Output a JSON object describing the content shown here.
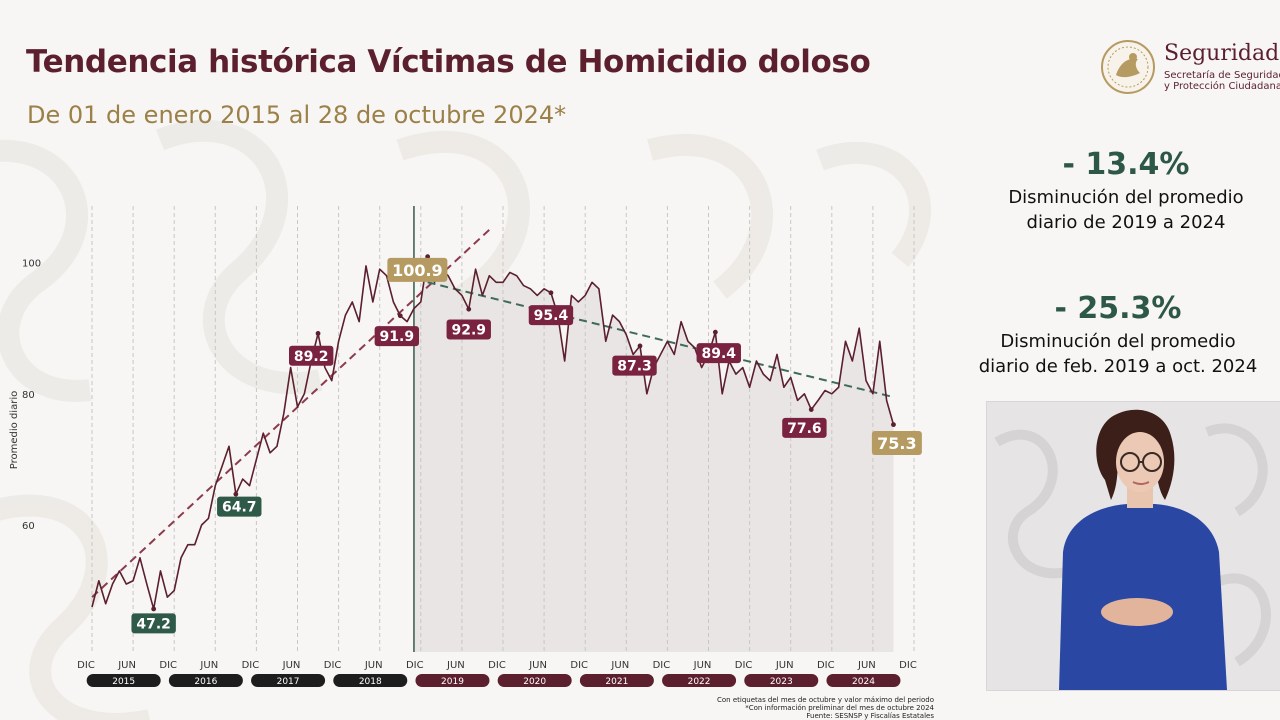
{
  "header": {
    "title": "Tendencia histórica Víctimas de Homicidio doloso",
    "subtitle": "De 01 de enero 2015 al 28 de octubre 2024*"
  },
  "logo": {
    "name": "Seguridad",
    "subtitle_line1": "Secretaría de Seguridad",
    "subtitle_line2": "y Protección Ciudadana"
  },
  "stats": [
    {
      "value": "- 13.4%",
      "description_line1": "Disminución del promedio",
      "description_line2": "diario de 2019 a 2024"
    },
    {
      "value": "- 25.3%",
      "description_line1": "Disminución del promedio",
      "description_line2": "diario de feb. 2019 a oct. 2024"
    }
  ],
  "footnote": {
    "line1": "Con etiquetas del mes de octubre y valor máximo del periodo",
    "line2": "*Con información preliminar del mes de octubre 2024",
    "line3": "Fuente: SESNSP y Fiscalías Estatales"
  },
  "colors": {
    "title": "#5b1f2e",
    "subtitle": "#9b8048",
    "stat_value": "#2d5746",
    "line": "#5b1f2e",
    "trend_up": "#8c3a4c",
    "trend_down": "#3f6b58",
    "label_maroon": "#7a2340",
    "label_green": "#2f5a48",
    "label_gold": "#b59a62",
    "shade": "#e9e5e5"
  },
  "chart_data": {
    "type": "line",
    "ylabel": "Promedio diario",
    "ylim": [
      42,
      112
    ],
    "y_ticks": [
      60,
      80,
      100
    ],
    "x_range": [
      0,
      118
    ],
    "x_ticks": [
      {
        "x": 0,
        "label": "DIC"
      },
      {
        "x": 6,
        "label": "JUN"
      },
      {
        "x": 12,
        "label": "DIC"
      },
      {
        "x": 18,
        "label": "JUN"
      },
      {
        "x": 24,
        "label": "DIC"
      },
      {
        "x": 30,
        "label": "JUN"
      },
      {
        "x": 36,
        "label": "DIC"
      },
      {
        "x": 42,
        "label": "JUN"
      },
      {
        "x": 48,
        "label": "DIC"
      },
      {
        "x": 54,
        "label": "JUN"
      },
      {
        "x": 60,
        "label": "DIC"
      },
      {
        "x": 66,
        "label": "JUN"
      },
      {
        "x": 72,
        "label": "DIC"
      },
      {
        "x": 78,
        "label": "JUN"
      },
      {
        "x": 84,
        "label": "DIC"
      },
      {
        "x": 90,
        "label": "JUN"
      },
      {
        "x": 96,
        "label": "DIC"
      },
      {
        "x": 102,
        "label": "JUN"
      },
      {
        "x": 108,
        "label": "DIC"
      },
      {
        "x": 114,
        "label": "JUN"
      },
      {
        "x": 120,
        "label": "DIC"
      }
    ],
    "year_labels": [
      {
        "label": "2015",
        "center": 5.5,
        "highlight": false
      },
      {
        "label": "2016",
        "center": 17.5,
        "highlight": false
      },
      {
        "label": "2017",
        "center": 29.5,
        "highlight": false
      },
      {
        "label": "2018",
        "center": 41.5,
        "highlight": false
      },
      {
        "label": "2019",
        "center": 53.5,
        "highlight": true
      },
      {
        "label": "2020",
        "center": 65.5,
        "highlight": true
      },
      {
        "label": "2021",
        "center": 77.5,
        "highlight": true
      },
      {
        "label": "2022",
        "center": 89.5,
        "highlight": true
      },
      {
        "label": "2023",
        "center": 101.5,
        "highlight": true
      },
      {
        "label": "2024",
        "center": 113.5,
        "highlight": true
      }
    ],
    "period_divider_x": 47,
    "series": [
      {
        "values": [
          [
            0,
            47.5
          ],
          [
            1,
            51.5
          ],
          [
            2,
            48
          ],
          [
            3,
            51
          ],
          [
            4,
            53
          ],
          [
            5,
            51
          ],
          [
            6,
            51.5
          ],
          [
            7,
            55
          ],
          [
            8,
            51
          ],
          [
            9,
            47.2
          ],
          [
            10,
            53
          ],
          [
            11,
            49
          ],
          [
            12,
            50
          ],
          [
            13,
            55
          ],
          [
            14,
            57
          ],
          [
            15,
            57
          ],
          [
            16,
            60
          ],
          [
            17,
            61
          ],
          [
            18,
            66
          ],
          [
            19,
            69
          ],
          [
            20,
            72
          ],
          [
            21,
            64.7
          ],
          [
            22,
            67
          ],
          [
            23,
            66
          ],
          [
            24,
            70
          ],
          [
            25,
            74
          ],
          [
            26,
            71
          ],
          [
            27,
            72
          ],
          [
            28,
            77
          ],
          [
            29,
            84
          ],
          [
            30,
            78
          ],
          [
            31,
            80
          ],
          [
            32,
            85
          ],
          [
            33,
            89.2
          ],
          [
            34,
            84
          ],
          [
            35,
            82
          ],
          [
            36,
            88
          ],
          [
            37,
            92
          ],
          [
            38,
            94
          ],
          [
            39,
            91
          ],
          [
            40,
            99.5
          ],
          [
            41,
            94
          ],
          [
            42,
            99
          ],
          [
            43,
            98
          ],
          [
            44,
            94
          ],
          [
            45,
            91.9
          ],
          [
            46,
            91
          ],
          [
            47,
            93
          ],
          [
            48,
            94
          ],
          [
            49,
            100.9
          ],
          [
            50,
            97
          ],
          [
            51,
            99
          ],
          [
            52,
            98
          ],
          [
            53,
            96
          ],
          [
            54,
            95
          ],
          [
            55,
            92.9
          ],
          [
            56,
            99
          ],
          [
            57,
            95
          ],
          [
            58,
            98
          ],
          [
            59,
            97
          ],
          [
            60,
            97
          ],
          [
            61,
            98.5
          ],
          [
            62,
            98
          ],
          [
            63,
            96.5
          ],
          [
            64,
            96
          ],
          [
            65,
            95
          ],
          [
            66,
            96
          ],
          [
            67,
            95.4
          ],
          [
            68,
            92
          ],
          [
            69,
            85
          ],
          [
            70,
            95
          ],
          [
            71,
            94
          ],
          [
            72,
            95
          ],
          [
            73,
            97
          ],
          [
            74,
            96
          ],
          [
            75,
            88
          ],
          [
            76,
            92
          ],
          [
            77,
            91
          ],
          [
            78,
            89
          ],
          [
            79,
            86
          ],
          [
            80,
            87.3
          ],
          [
            81,
            80
          ],
          [
            82,
            84
          ],
          [
            83,
            86
          ],
          [
            84,
            88
          ],
          [
            85,
            86
          ],
          [
            86,
            91
          ],
          [
            87,
            88
          ],
          [
            88,
            87
          ],
          [
            89,
            84
          ],
          [
            90,
            86
          ],
          [
            91,
            89.4
          ],
          [
            92,
            80
          ],
          [
            93,
            85
          ],
          [
            94,
            83
          ],
          [
            95,
            84
          ],
          [
            96,
            81
          ],
          [
            97,
            85
          ],
          [
            98,
            83
          ],
          [
            99,
            82
          ],
          [
            100,
            86
          ],
          [
            101,
            81
          ],
          [
            102,
            82.5
          ],
          [
            103,
            79
          ],
          [
            104,
            80
          ],
          [
            105,
            77.6
          ],
          [
            106,
            79
          ],
          [
            107,
            80.5
          ],
          [
            108,
            80
          ],
          [
            109,
            81
          ],
          [
            110,
            88
          ],
          [
            111,
            85
          ],
          [
            112,
            90
          ],
          [
            113,
            82
          ],
          [
            114,
            80
          ],
          [
            115,
            88
          ],
          [
            116,
            79
          ],
          [
            117,
            75.3
          ]
        ]
      }
    ],
    "trend_lines": [
      {
        "role": "up",
        "from": [
          0,
          49
        ],
        "to": [
          58,
          105
        ]
      },
      {
        "role": "down",
        "from": [
          49,
          97
        ],
        "to": [
          117,
          79.5
        ]
      }
    ],
    "annotations": [
      {
        "x": 9,
        "y": 47.2,
        "text": "47.2",
        "style": "green",
        "lx": 9,
        "ly": 45
      },
      {
        "x": 21,
        "y": 64.7,
        "text": "64.7",
        "style": "green",
        "lx": 21.5,
        "ly": 62.8
      },
      {
        "x": 33,
        "y": 89.2,
        "text": "89.2",
        "style": "maroon",
        "lx": 32,
        "ly": 85.8
      },
      {
        "x": 45,
        "y": 91.9,
        "text": "91.9",
        "style": "maroon",
        "lx": 44.5,
        "ly": 88.8
      },
      {
        "x": 49,
        "y": 100.9,
        "text": "100.9",
        "style": "gold",
        "lx": 47.5,
        "ly": 98.9
      },
      {
        "x": 55,
        "y": 92.9,
        "text": "92.9",
        "style": "maroon",
        "lx": 55,
        "ly": 89.8
      },
      {
        "x": 67,
        "y": 95.4,
        "text": "95.4",
        "style": "maroon",
        "lx": 67,
        "ly": 92
      },
      {
        "x": 80,
        "y": 87.3,
        "text": "87.3",
        "style": "maroon",
        "lx": 79.2,
        "ly": 84.3
      },
      {
        "x": 91,
        "y": 89.4,
        "text": "89.4",
        "style": "maroon",
        "lx": 91.5,
        "ly": 86.2
      },
      {
        "x": 105,
        "y": 77.6,
        "text": "77.6",
        "style": "maroon",
        "lx": 104,
        "ly": 74.8
      },
      {
        "x": 117,
        "y": 75.3,
        "text": "75.3",
        "style": "gold",
        "lx": 117.5,
        "ly": 72.5
      }
    ]
  },
  "video": {
    "icon": "sign-language-interpreter"
  }
}
